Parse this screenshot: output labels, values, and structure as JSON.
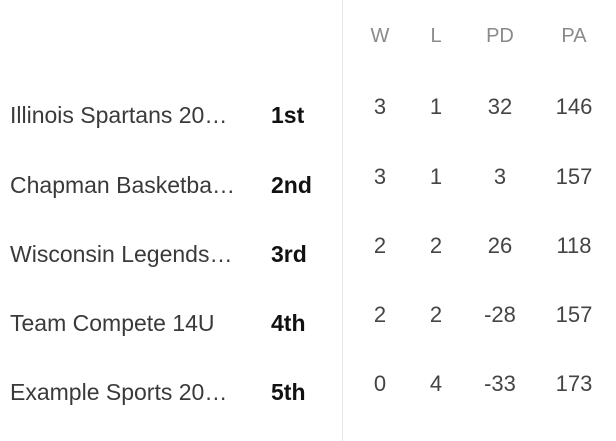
{
  "columns": {
    "w": "W",
    "l": "L",
    "pd": "PD",
    "pa": "PA"
  },
  "rows": [
    {
      "team": "Illinois Spartans 20…",
      "rank": "1st",
      "w": "3",
      "l": "1",
      "pd": "32",
      "pa": "146"
    },
    {
      "team": "Chapman Basketba…",
      "rank": "2nd",
      "w": "3",
      "l": "1",
      "pd": "3",
      "pa": "157"
    },
    {
      "team": "Wisconsin Legends…",
      "rank": "3rd",
      "w": "2",
      "l": "2",
      "pd": "26",
      "pa": "118"
    },
    {
      "team": "Team Compete 14U",
      "rank": "4th",
      "w": "2",
      "l": "2",
      "pd": "-28",
      "pa": "157"
    },
    {
      "team": "Example Sports 20…",
      "rank": "5th",
      "w": "0",
      "l": "4",
      "pd": "-33",
      "pa": "173"
    }
  ]
}
